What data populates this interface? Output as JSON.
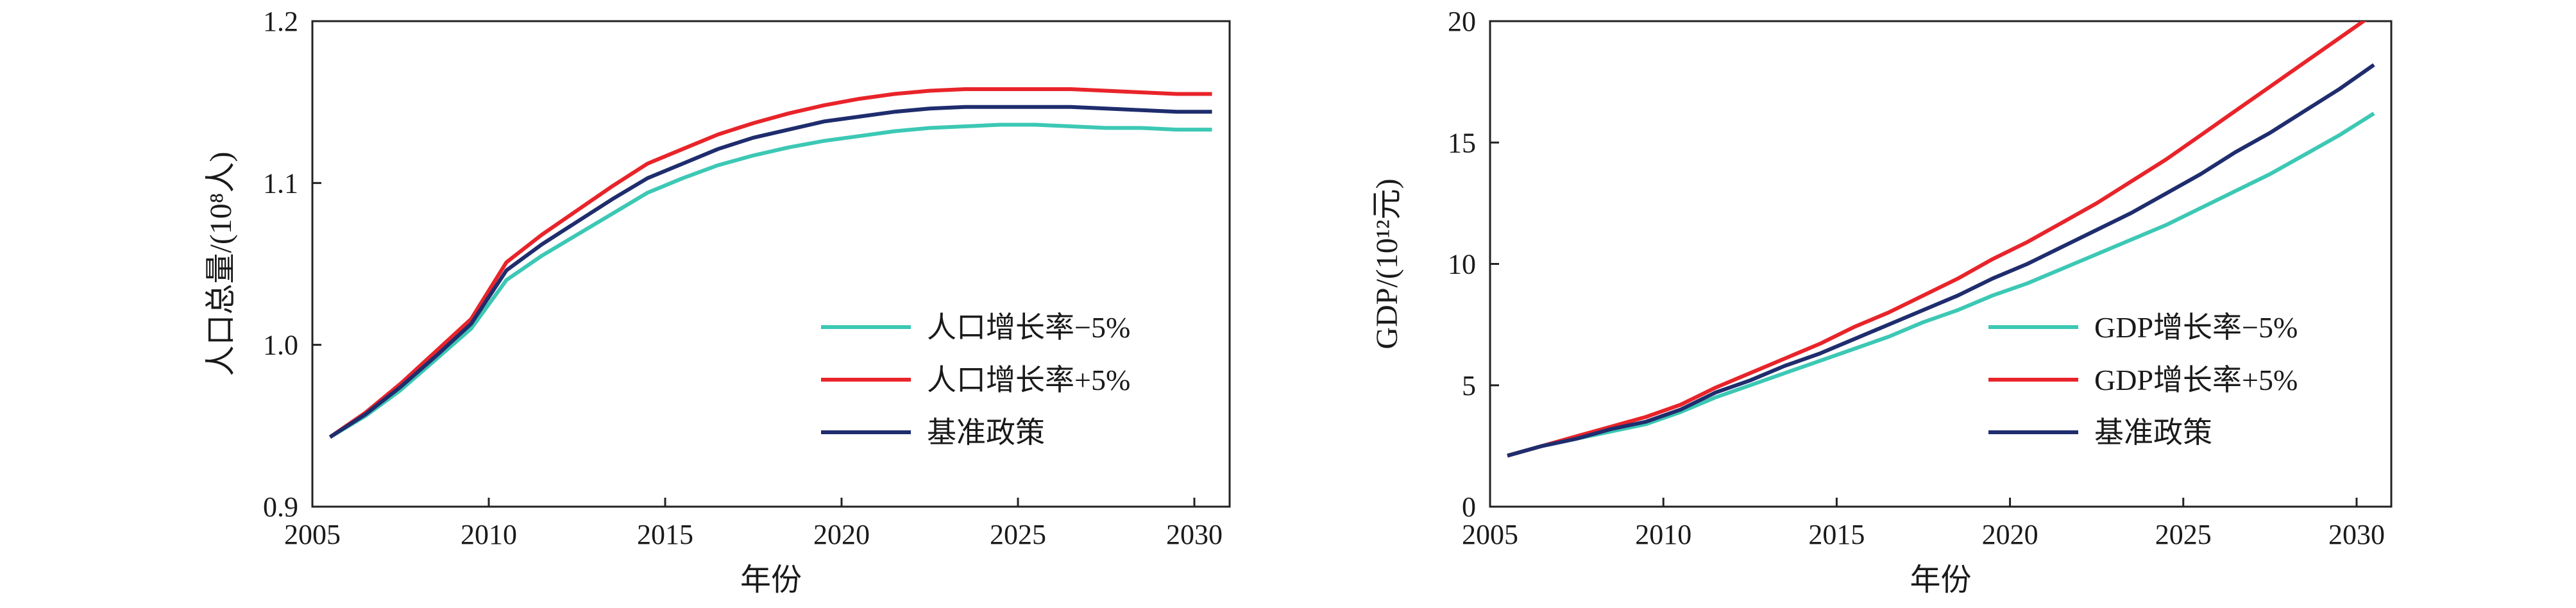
{
  "chart_data": [
    {
      "type": "line",
      "xlabel": "年份",
      "ylabel": "人口总量/(10⁸人)",
      "xlim": [
        2005,
        2031
      ],
      "ylim": [
        0.9,
        1.2
      ],
      "xticks": [
        "2005",
        "2010",
        "2015",
        "2020",
        "2025",
        "2030"
      ],
      "yticks": [
        "0.9",
        "1.0",
        "1.1",
        "1.2"
      ],
      "grid": false,
      "legend": "lower-right",
      "x": [
        2005.5,
        2006.5,
        2007.5,
        2008.5,
        2009.5,
        2010.5,
        2011.5,
        2012.5,
        2013.5,
        2014.5,
        2015.5,
        2016.5,
        2017.5,
        2018.5,
        2019.5,
        2020.5,
        2021.5,
        2022.5,
        2023.5,
        2024.5,
        2025.5,
        2026.5,
        2027.5,
        2028.5,
        2029.5,
        2030.5
      ],
      "series": [
        {
          "name": "人口增长率−5%",
          "color": "#3cc8b4",
          "values": [
            0.943,
            0.956,
            0.972,
            0.991,
            1.01,
            1.04,
            1.055,
            1.068,
            1.081,
            1.094,
            1.103,
            1.111,
            1.117,
            1.122,
            1.126,
            1.129,
            1.132,
            1.134,
            1.135,
            1.136,
            1.136,
            1.135,
            1.134,
            1.134,
            1.133,
            1.133
          ]
        },
        {
          "name": "人口增长率+5%",
          "color": "#e8242a",
          "values": [
            0.943,
            0.958,
            0.976,
            0.996,
            1.016,
            1.051,
            1.068,
            1.083,
            1.098,
            1.112,
            1.121,
            1.13,
            1.137,
            1.143,
            1.148,
            1.152,
            1.155,
            1.157,
            1.158,
            1.158,
            1.158,
            1.158,
            1.157,
            1.156,
            1.155,
            1.155
          ]
        },
        {
          "name": "基准政策",
          "color": "#1f2d6e",
          "values": [
            0.943,
            0.957,
            0.974,
            0.993,
            1.013,
            1.046,
            1.062,
            1.076,
            1.09,
            1.103,
            1.112,
            1.121,
            1.128,
            1.133,
            1.138,
            1.141,
            1.144,
            1.146,
            1.147,
            1.147,
            1.147,
            1.147,
            1.146,
            1.145,
            1.144,
            1.144
          ]
        }
      ]
    },
    {
      "type": "line",
      "xlabel": "年份",
      "ylabel": "GDP/(10¹²元)",
      "xlim": [
        2005,
        2031
      ],
      "ylim": [
        0,
        20
      ],
      "xticks": [
        "2005",
        "2010",
        "2015",
        "2020",
        "2025",
        "2030"
      ],
      "yticks": [
        "0",
        "5",
        "10",
        "15",
        "20"
      ],
      "grid": false,
      "legend": "lower-right",
      "x": [
        2005.5,
        2006.5,
        2007.5,
        2008.5,
        2009.5,
        2010.5,
        2011.5,
        2012.5,
        2013.5,
        2014.5,
        2015.5,
        2016.5,
        2017.5,
        2018.5,
        2019.5,
        2020.5,
        2021.5,
        2022.5,
        2023.5,
        2024.5,
        2025.5,
        2026.5,
        2027.5,
        2028.5,
        2029.5,
        2030.5
      ],
      "series": [
        {
          "name": "GDP增长率−5%",
          "color": "#3cc8b4",
          "values": [
            2.1,
            2.5,
            2.8,
            3.1,
            3.4,
            3.9,
            4.5,
            5.0,
            5.5,
            6.0,
            6.5,
            7.0,
            7.6,
            8.1,
            8.7,
            9.2,
            9.8,
            10.4,
            11.0,
            11.6,
            12.3,
            13.0,
            13.7,
            14.5,
            15.3,
            16.2
          ]
        },
        {
          "name": "GDP增长率+5%",
          "color": "#e8242a",
          "values": [
            2.1,
            2.5,
            2.9,
            3.3,
            3.7,
            4.2,
            4.9,
            5.5,
            6.1,
            6.7,
            7.4,
            8.0,
            8.7,
            9.4,
            10.2,
            10.9,
            11.7,
            12.5,
            13.4,
            14.3,
            15.3,
            16.3,
            17.3,
            18.3,
            19.3,
            20.3
          ]
        },
        {
          "name": "基准政策",
          "color": "#1f2d6e",
          "values": [
            2.1,
            2.5,
            2.8,
            3.2,
            3.5,
            4.0,
            4.7,
            5.2,
            5.8,
            6.3,
            6.9,
            7.5,
            8.1,
            8.7,
            9.4,
            10.0,
            10.7,
            11.4,
            12.1,
            12.9,
            13.7,
            14.6,
            15.4,
            16.3,
            17.2,
            18.2
          ]
        }
      ]
    }
  ]
}
